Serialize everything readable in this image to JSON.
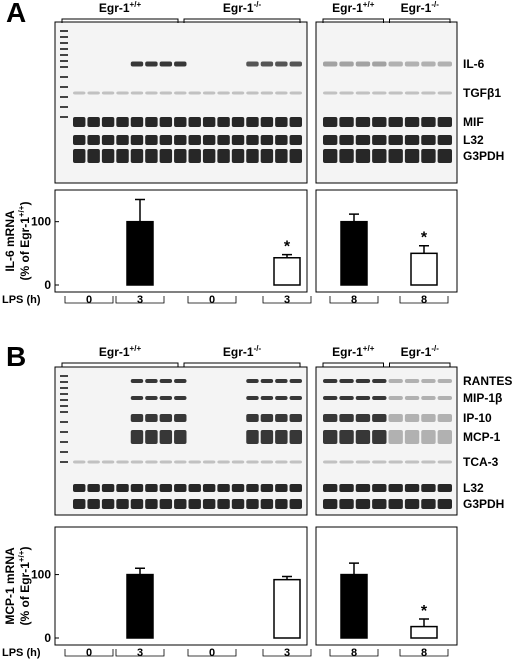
{
  "panels": [
    {
      "label": "A",
      "headers": [
        {
          "base": "Egr-1",
          "sup": "+/+"
        },
        {
          "base": "Egr-1",
          "sup": "-/-"
        },
        {
          "base": "Egr-1",
          "sup": "+/+"
        },
        {
          "base": "Egr-1",
          "sup": "-/-"
        }
      ],
      "bands": [
        "IL-6",
        "TGFβ1",
        "MIF",
        "L32",
        "G3PDH"
      ],
      "y_label": "IL-6 mRNA",
      "y_label_sub": {
        "base": "(% of Egr-1",
        "sup": "+/+",
        "end": ")"
      },
      "x_label": "LPS (h)"
    },
    {
      "label": "B",
      "headers": [
        {
          "base": "Egr-1",
          "sup": "+/+"
        },
        {
          "base": "Egr-1",
          "sup": "-/-"
        },
        {
          "base": "Egr-1",
          "sup": "+/+"
        },
        {
          "base": "Egr-1",
          "sup": "-/-"
        }
      ],
      "bands": [
        "RANTES",
        "MIP-1β",
        "IP-10",
        "MCP-1",
        "TCA-3",
        "L32",
        "G3PDH"
      ],
      "y_label": "MCP-1 mRNA",
      "y_label_sub": {
        "base": "(% of Egr-1",
        "sup": "+/+",
        "end": ")"
      },
      "x_label": "LPS (h)"
    }
  ],
  "chart_data": [
    {
      "type": "bar",
      "categories": [
        "0",
        "3",
        "0",
        "3"
      ],
      "values": [
        0,
        100,
        0,
        43
      ],
      "errors": [
        null,
        35,
        null,
        5
      ],
      "colors": [
        "#000000",
        "#000000",
        "#ffffff",
        "#ffffff"
      ],
      "significant": [
        false,
        false,
        false,
        true
      ],
      "marker": "*",
      "ylim": [
        0,
        150
      ],
      "yticks": [
        0,
        100
      ]
    },
    {
      "type": "bar",
      "categories": [
        "8",
        "8"
      ],
      "values": [
        100,
        50
      ],
      "errors": [
        12,
        12
      ],
      "colors": [
        "#000000",
        "#ffffff"
      ],
      "significant": [
        false,
        true
      ],
      "marker": "*",
      "ylim": [
        0,
        150
      ]
    },
    {
      "type": "bar",
      "categories": [
        "0",
        "3",
        "0",
        "3"
      ],
      "values": [
        0,
        100,
        0,
        92
      ],
      "errors": [
        null,
        10,
        null,
        5
      ],
      "colors": [
        "#000000",
        "#000000",
        "#ffffff",
        "#ffffff"
      ],
      "significant": [
        false,
        false,
        false,
        false
      ],
      "marker": "*",
      "ylim": [
        0,
        175
      ],
      "yticks": [
        0,
        100
      ]
    },
    {
      "type": "bar",
      "categories": [
        "8",
        "8"
      ],
      "values": [
        100,
        18
      ],
      "errors": [
        18,
        12
      ],
      "colors": [
        "#000000",
        "#ffffff"
      ],
      "significant": [
        false,
        true
      ],
      "marker": "*",
      "ylim": [
        0,
        175
      ]
    }
  ]
}
